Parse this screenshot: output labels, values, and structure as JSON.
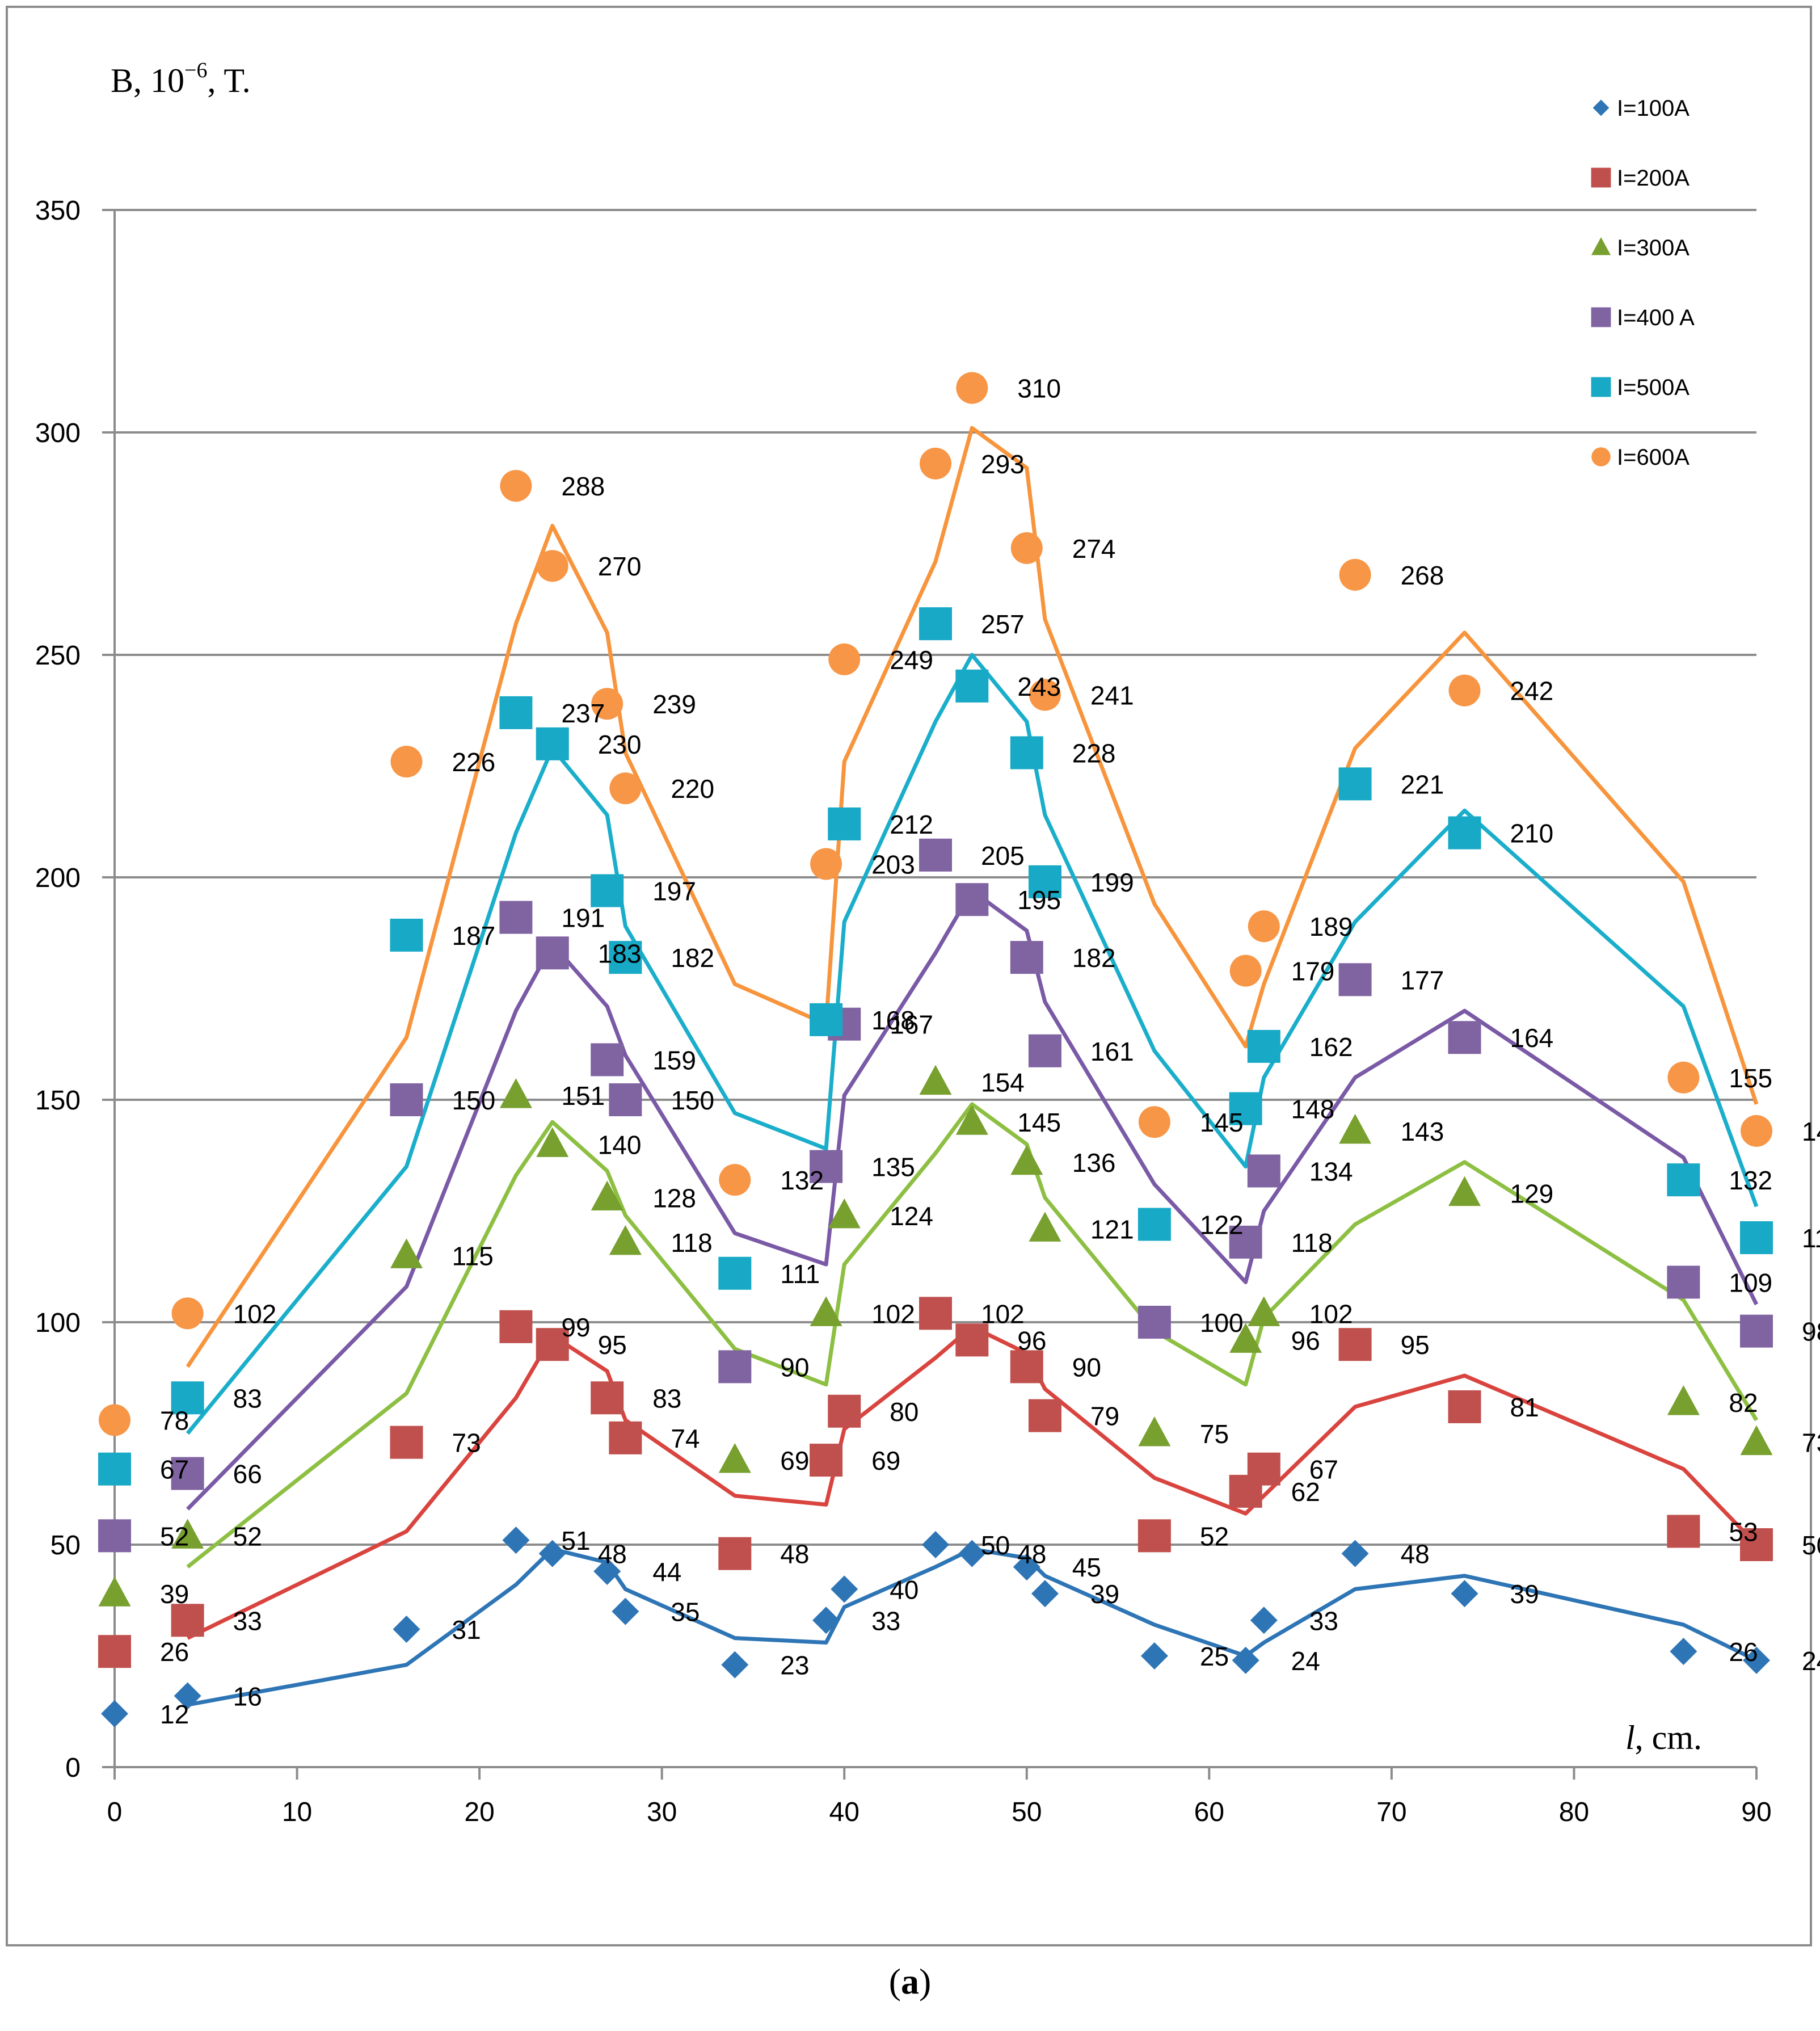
{
  "chart_data": {
    "type": "line",
    "title": "",
    "ylabel": "B, 10",
    "ylabel_exp": "−6",
    "ylabel_suffix": ", T.",
    "xlabel": "l",
    "xlabel_suffix": ", cm.",
    "xlim": [
      0,
      90
    ],
    "ylim": [
      0,
      350
    ],
    "xticks": [
      0,
      10,
      20,
      30,
      40,
      50,
      60,
      70,
      80,
      90
    ],
    "yticks": [
      0,
      50,
      100,
      150,
      200,
      250,
      300,
      350
    ],
    "grid": "horizontal",
    "legend_position": "top-right",
    "series": [
      {
        "name": "I=100A",
        "marker": "diamond",
        "color": "#2e75b6",
        "line_color": "#2e75b6",
        "points": [
          [
            0,
            12
          ],
          [
            4,
            16
          ],
          [
            16,
            31
          ],
          [
            22,
            51
          ],
          [
            24,
            48
          ],
          [
            27,
            44
          ],
          [
            28,
            35
          ],
          [
            34,
            23
          ],
          [
            39,
            33
          ],
          [
            40,
            40
          ],
          [
            45,
            50
          ],
          [
            47,
            48
          ],
          [
            50,
            45
          ],
          [
            51,
            39
          ],
          [
            57,
            25
          ],
          [
            62,
            24
          ],
          [
            63,
            33
          ],
          [
            68,
            48
          ],
          [
            74,
            39
          ],
          [
            86,
            26
          ],
          [
            90,
            24
          ]
        ],
        "line": [
          [
            4,
            14
          ],
          [
            16,
            23
          ],
          [
            22,
            41
          ],
          [
            24,
            49
          ],
          [
            27,
            46
          ],
          [
            28,
            40
          ],
          [
            34,
            29
          ],
          [
            39,
            28
          ],
          [
            40,
            36
          ],
          [
            45,
            45
          ],
          [
            47,
            49
          ],
          [
            50,
            47
          ],
          [
            51,
            43
          ],
          [
            57,
            32
          ],
          [
            62,
            25
          ],
          [
            63,
            28
          ],
          [
            68,
            40
          ],
          [
            74,
            43
          ],
          [
            86,
            32
          ],
          [
            90,
            24
          ]
        ]
      },
      {
        "name": "I=200A",
        "marker": "square",
        "color": "#c0504d",
        "line_color": "#d9443f",
        "points": [
          [
            0,
            26
          ],
          [
            4,
            33
          ],
          [
            16,
            73
          ],
          [
            22,
            99
          ],
          [
            24,
            95
          ],
          [
            27,
            83
          ],
          [
            28,
            74
          ],
          [
            34,
            48
          ],
          [
            39,
            69
          ],
          [
            40,
            80
          ],
          [
            45,
            102
          ],
          [
            47,
            96
          ],
          [
            50,
            90
          ],
          [
            51,
            79
          ],
          [
            57,
            52
          ],
          [
            62,
            62
          ],
          [
            63,
            67
          ],
          [
            68,
            95
          ],
          [
            74,
            81
          ],
          [
            86,
            53
          ],
          [
            90,
            50
          ]
        ],
        "line": [
          [
            4,
            29
          ],
          [
            16,
            53
          ],
          [
            22,
            83
          ],
          [
            24,
            97
          ],
          [
            27,
            89
          ],
          [
            28,
            78
          ],
          [
            34,
            61
          ],
          [
            39,
            59
          ],
          [
            40,
            76
          ],
          [
            45,
            92
          ],
          [
            47,
            99
          ],
          [
            50,
            93
          ],
          [
            51,
            85
          ],
          [
            57,
            65
          ],
          [
            62,
            57
          ],
          [
            63,
            61
          ],
          [
            68,
            81
          ],
          [
            74,
            88
          ],
          [
            86,
            67
          ],
          [
            90,
            50
          ]
        ]
      },
      {
        "name": "I=300A",
        "marker": "triangle",
        "color": "#77a02e",
        "line_color": "#8dbf42",
        "points": [
          [
            0,
            39
          ],
          [
            4,
            52
          ],
          [
            16,
            115
          ],
          [
            22,
            151
          ],
          [
            24,
            140
          ],
          [
            27,
            128
          ],
          [
            28,
            118
          ],
          [
            34,
            69
          ],
          [
            39,
            102
          ],
          [
            40,
            124
          ],
          [
            45,
            154
          ],
          [
            47,
            145
          ],
          [
            50,
            136
          ],
          [
            51,
            121
          ],
          [
            57,
            75
          ],
          [
            62,
            96
          ],
          [
            63,
            102
          ],
          [
            68,
            143
          ],
          [
            74,
            129
          ],
          [
            86,
            82
          ],
          [
            90,
            73
          ]
        ],
        "line": [
          [
            4,
            45
          ],
          [
            16,
            84
          ],
          [
            22,
            133
          ],
          [
            24,
            145
          ],
          [
            27,
            134
          ],
          [
            28,
            124
          ],
          [
            34,
            94
          ],
          [
            39,
            86
          ],
          [
            40,
            113
          ],
          [
            45,
            138
          ],
          [
            47,
            149
          ],
          [
            50,
            140
          ],
          [
            51,
            128
          ],
          [
            57,
            98
          ],
          [
            62,
            86
          ],
          [
            63,
            101
          ],
          [
            68,
            122
          ],
          [
            74,
            136
          ],
          [
            86,
            105
          ],
          [
            90,
            78
          ]
        ]
      },
      {
        "name": "I=400 A",
        "marker": "square",
        "color": "#8064a2",
        "line_color": "#7a5aa6",
        "points": [
          [
            0,
            52
          ],
          [
            4,
            66
          ],
          [
            16,
            150
          ],
          [
            22,
            191
          ],
          [
            24,
            183
          ],
          [
            27,
            159
          ],
          [
            28,
            150
          ],
          [
            34,
            90
          ],
          [
            39,
            135
          ],
          [
            40,
            167
          ],
          [
            45,
            205
          ],
          [
            47,
            195
          ],
          [
            50,
            182
          ],
          [
            51,
            161
          ],
          [
            57,
            100
          ],
          [
            62,
            118
          ],
          [
            63,
            134
          ],
          [
            68,
            177
          ],
          [
            74,
            164
          ],
          [
            86,
            109
          ],
          [
            90,
            98
          ]
        ],
        "line": [
          [
            4,
            58
          ],
          [
            16,
            108
          ],
          [
            22,
            170
          ],
          [
            24,
            185
          ],
          [
            27,
            171
          ],
          [
            28,
            160
          ],
          [
            34,
            120
          ],
          [
            39,
            113
          ],
          [
            40,
            151
          ],
          [
            45,
            183
          ],
          [
            47,
            197
          ],
          [
            50,
            188
          ],
          [
            51,
            172
          ],
          [
            57,
            131
          ],
          [
            62,
            109
          ],
          [
            63,
            125
          ],
          [
            68,
            155
          ],
          [
            74,
            170
          ],
          [
            86,
            137
          ],
          [
            90,
            104
          ]
        ]
      },
      {
        "name": "I=500A",
        "marker": "square",
        "color": "#17a9c6",
        "line_color": "#1aaecb",
        "points": [
          [
            0,
            67
          ],
          [
            4,
            83
          ],
          [
            16,
            187
          ],
          [
            22,
            237
          ],
          [
            24,
            230
          ],
          [
            27,
            197
          ],
          [
            28,
            182
          ],
          [
            34,
            111
          ],
          [
            39,
            168
          ],
          [
            40,
            212
          ],
          [
            45,
            257
          ],
          [
            47,
            243
          ],
          [
            50,
            228
          ],
          [
            51,
            199
          ],
          [
            57,
            122
          ],
          [
            62,
            148
          ],
          [
            63,
            162
          ],
          [
            68,
            221
          ],
          [
            74,
            210
          ],
          [
            86,
            132
          ],
          [
            90,
            119
          ]
        ],
        "line": [
          [
            4,
            75
          ],
          [
            16,
            135
          ],
          [
            22,
            210
          ],
          [
            24,
            229
          ],
          [
            27,
            214
          ],
          [
            28,
            189
          ],
          [
            34,
            147
          ],
          [
            39,
            139
          ],
          [
            40,
            190
          ],
          [
            45,
            235
          ],
          [
            47,
            250
          ],
          [
            50,
            235
          ],
          [
            51,
            214
          ],
          [
            57,
            161
          ],
          [
            62,
            135
          ],
          [
            63,
            155
          ],
          [
            68,
            190
          ],
          [
            74,
            215
          ],
          [
            86,
            171
          ],
          [
            90,
            126
          ]
        ]
      },
      {
        "name": "I=600A",
        "marker": "circle",
        "color": "#f79646",
        "line_color": "#f7943c",
        "points": [
          [
            0,
            78
          ],
          [
            4,
            102
          ],
          [
            16,
            226
          ],
          [
            22,
            288
          ],
          [
            24,
            270
          ],
          [
            27,
            239
          ],
          [
            28,
            220
          ],
          [
            34,
            132
          ],
          [
            39,
            203
          ],
          [
            40,
            249
          ],
          [
            45,
            293
          ],
          [
            47,
            310
          ],
          [
            50,
            274
          ],
          [
            51,
            241
          ],
          [
            57,
            145
          ],
          [
            62,
            179
          ],
          [
            63,
            189
          ],
          [
            68,
            268
          ],
          [
            74,
            242
          ],
          [
            86,
            155
          ],
          [
            90,
            143
          ]
        ],
        "line": [
          [
            4,
            90
          ],
          [
            16,
            164
          ],
          [
            22,
            257
          ],
          [
            24,
            279
          ],
          [
            27,
            255
          ],
          [
            28,
            228
          ],
          [
            34,
            176
          ],
          [
            39,
            167
          ],
          [
            40,
            226
          ],
          [
            45,
            271
          ],
          [
            47,
            301
          ],
          [
            50,
            292
          ],
          [
            51,
            258
          ],
          [
            57,
            194
          ],
          [
            62,
            162
          ],
          [
            63,
            176
          ],
          [
            68,
            229
          ],
          [
            74,
            255
          ],
          [
            86,
            199
          ],
          [
            90,
            149
          ]
        ]
      }
    ]
  },
  "caption": {
    "open": "(",
    "letter": "a",
    "close": ")"
  }
}
